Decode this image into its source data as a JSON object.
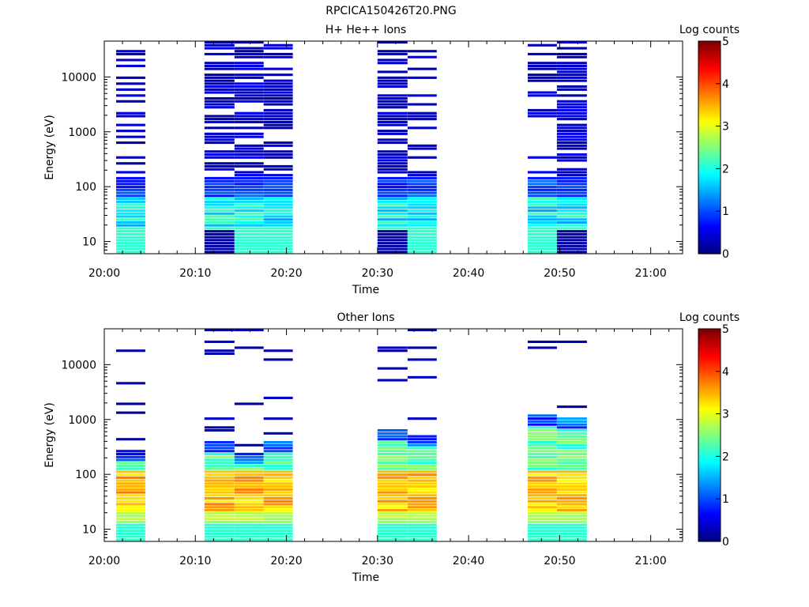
{
  "figure": {
    "title": "RPCICA150426T20.PNG"
  },
  "colorbar": {
    "label": "Log counts",
    "ticks": [
      "0",
      "1",
      "2",
      "3",
      "4",
      "5"
    ],
    "range": [
      0,
      5
    ],
    "colormap": "jet"
  },
  "chart_data": [
    {
      "type": "heatmap",
      "title": "H+ He++ Ions",
      "xlabel": "Time",
      "ylabel": "Energy (eV)",
      "x_ticks": [
        "20:00",
        "20:10",
        "20:20",
        "20:30",
        "20:40",
        "20:50",
        "21:00"
      ],
      "y_ticks": [
        "10",
        "100",
        "1000",
        "10000"
      ],
      "y_scale": "log",
      "ylim": [
        6,
        45000
      ],
      "xlim_minutes_after_20_00": [
        0,
        63.5
      ],
      "colorbar_label": "Log counts",
      "columns": [
        {
          "start_min": 1.3,
          "end_min": 4.5,
          "profile": "hp_a"
        },
        {
          "start_min": 11.0,
          "end_min": 14.3,
          "profile": "hp_b"
        },
        {
          "start_min": 14.3,
          "end_min": 17.5,
          "profile": "hp_c"
        },
        {
          "start_min": 17.5,
          "end_min": 20.7,
          "profile": "hp_d"
        },
        {
          "start_min": 30.0,
          "end_min": 33.3,
          "profile": "hp_e"
        },
        {
          "start_min": 33.3,
          "end_min": 36.5,
          "profile": "hp_f"
        },
        {
          "start_min": 46.5,
          "end_min": 49.7,
          "profile": "hp_g"
        },
        {
          "start_min": 49.7,
          "end_min": 53.0,
          "profile": "hp_h"
        }
      ]
    },
    {
      "type": "heatmap",
      "title": "Other Ions",
      "xlabel": "Time",
      "ylabel": "Energy (eV)",
      "x_ticks": [
        "20:00",
        "20:10",
        "20:20",
        "20:30",
        "20:40",
        "20:50",
        "21:00"
      ],
      "y_ticks": [
        "10",
        "100",
        "1000",
        "10000"
      ],
      "y_scale": "log",
      "ylim": [
        6,
        45000
      ],
      "xlim_minutes_after_20_00": [
        0,
        63.5
      ],
      "colorbar_label": "Log counts",
      "columns": [
        {
          "start_min": 1.3,
          "end_min": 4.5,
          "profile": "ot_a"
        },
        {
          "start_min": 11.0,
          "end_min": 14.3,
          "profile": "ot_b"
        },
        {
          "start_min": 14.3,
          "end_min": 17.5,
          "profile": "ot_c"
        },
        {
          "start_min": 17.5,
          "end_min": 20.7,
          "profile": "ot_d"
        },
        {
          "start_min": 30.0,
          "end_min": 33.3,
          "profile": "ot_e"
        },
        {
          "start_min": 33.3,
          "end_min": 36.5,
          "profile": "ot_f"
        },
        {
          "start_min": 46.5,
          "end_min": 49.7,
          "profile": "ot_g"
        },
        {
          "start_min": 49.7,
          "end_min": 53.0,
          "profile": "ot_h"
        }
      ]
    }
  ]
}
